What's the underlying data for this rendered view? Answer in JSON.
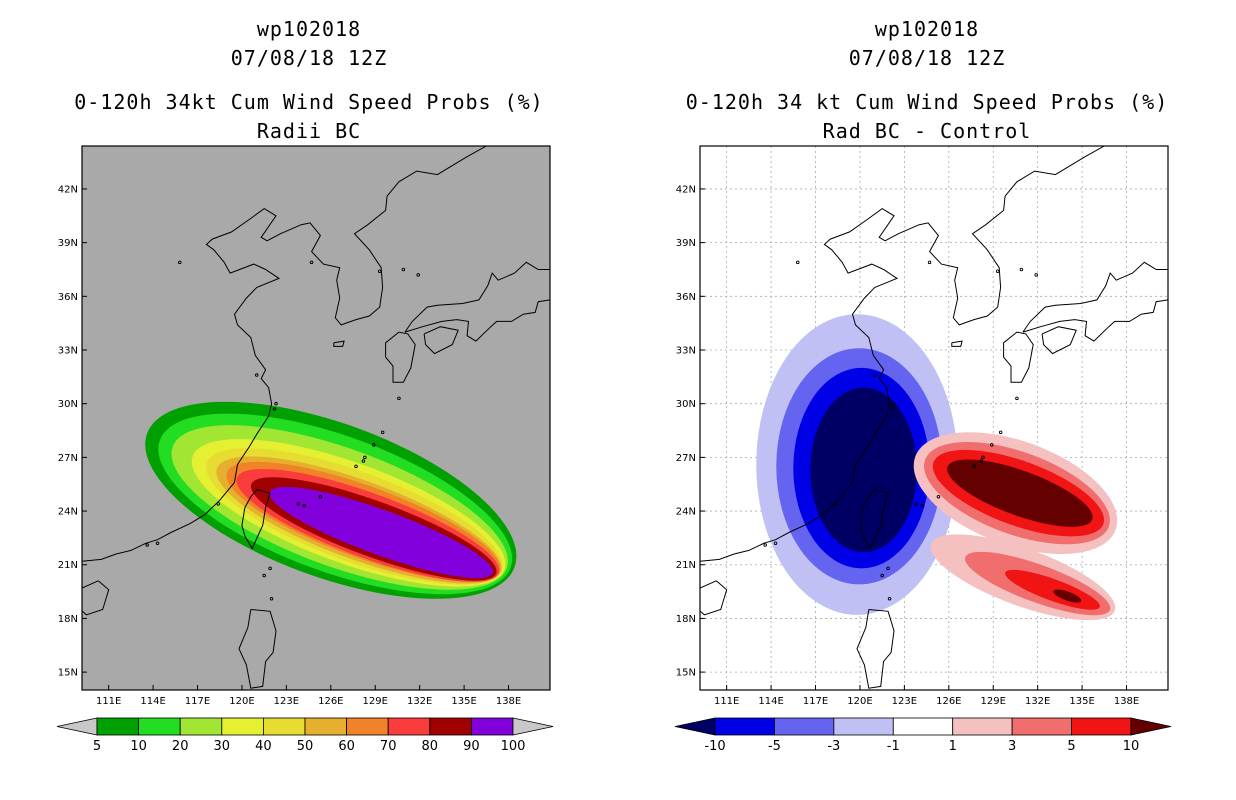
{
  "figure": {
    "panels": [
      {
        "id": "radii-bc",
        "title_lines": [
          "wp102018",
          "07/08/18 12Z",
          "0-120h 34kt Cum Wind Speed Probs (%)",
          "Radii BC"
        ]
      },
      {
        "id": "rad-bc-control",
        "title_lines": [
          "wp102018",
          "07/08/18 12Z",
          "0-120h 34 kt Cum Wind Speed Probs (%)",
          "Rad BC - Control"
        ]
      }
    ]
  },
  "chart_data": [
    {
      "type": "heatmap",
      "title": "0-120h 34kt Cum Wind Speed Probs (%)",
      "subtitle": "Radii BC",
      "storm": "wp102018",
      "datetime": "07/08/18 12Z",
      "x_ticks": [
        "111E",
        "114E",
        "117E",
        "120E",
        "123E",
        "126E",
        "129E",
        "132E",
        "135E",
        "138E"
      ],
      "y_ticks": [
        "42N",
        "39N",
        "36N",
        "33N",
        "30N",
        "27N",
        "24N",
        "21N",
        "18N",
        "15N"
      ],
      "x_range": [
        109.2,
        140.8
      ],
      "y_range": [
        14.0,
        44.4
      ],
      "colorbar": {
        "labels": [
          "5",
          "10",
          "20",
          "30",
          "40",
          "50",
          "60",
          "70",
          "80",
          "90",
          "100"
        ],
        "colors": [
          "#00a000",
          "#22dd22",
          "#a0e632",
          "#e6f032",
          "#e6dc32",
          "#e6af2d",
          "#f08228",
          "#fa3c3c",
          "#a00000",
          "#8200dc"
        ],
        "under_color": "#c8c8c8",
        "over_color": "#c8c8c8"
      },
      "background_color": "#a9a9a9",
      "contour_levels": [
        5,
        10,
        20,
        30,
        40,
        50,
        60,
        70,
        80,
        90
      ]
    },
    {
      "type": "heatmap",
      "title": "0-120h 34 kt Cum Wind Speed Probs (%)",
      "subtitle": "Rad BC - Control",
      "storm": "wp102018",
      "datetime": "07/08/18 12Z",
      "x_ticks": [
        "111E",
        "114E",
        "117E",
        "120E",
        "123E",
        "126E",
        "129E",
        "132E",
        "135E",
        "138E"
      ],
      "y_ticks": [
        "42N",
        "39N",
        "36N",
        "33N",
        "30N",
        "27N",
        "24N",
        "21N",
        "18N",
        "15N"
      ],
      "x_range": [
        109.2,
        140.8
      ],
      "y_range": [
        14.0,
        44.4
      ],
      "colorbar": {
        "labels": [
          "-10",
          "-5",
          "-3",
          "-1",
          "1",
          "3",
          "5",
          "10"
        ],
        "colors": [
          "#0000e6",
          "#6464f0",
          "#c0c0f5",
          "#ffffff",
          "#f5c0c0",
          "#f06e6e",
          "#f01414"
        ],
        "under_color": "#000064",
        "over_color": "#640000"
      },
      "background_color": "#ffffff",
      "negative_region": {
        "center": [
          119.8,
          26.6
        ],
        "levels": [
          -1,
          -3,
          -5,
          -10
        ]
      },
      "positive_regions": [
        {
          "center": [
            130.5,
            25.0
          ],
          "levels": [
            1,
            3,
            5,
            10
          ]
        },
        {
          "center": [
            131.0,
            20.3
          ],
          "levels": [
            1,
            3,
            5,
            10
          ]
        }
      ]
    }
  ]
}
